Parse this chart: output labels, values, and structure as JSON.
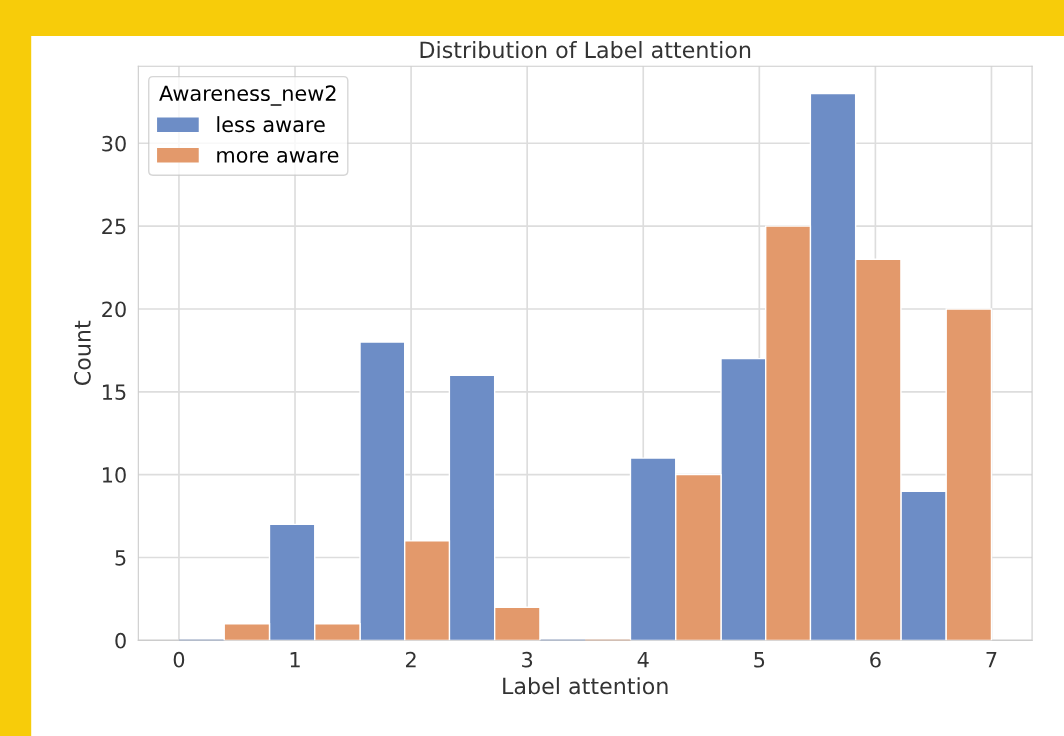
{
  "chart_data": {
    "type": "histogram",
    "title": "Distribution of Label attention",
    "xlabel": "Label attention",
    "ylabel": "Count",
    "legend_title": "Awareness_new2",
    "bins": [
      0,
      0.78,
      1.56,
      2.33,
      3.11,
      3.89,
      4.67,
      5.44,
      6.22,
      7
    ],
    "series": [
      {
        "name": "less aware",
        "color": "#6d8dc6",
        "values": [
          0,
          7,
          18,
          16,
          0,
          11,
          17,
          33,
          9
        ]
      },
      {
        "name": "more aware",
        "color": "#e3996b",
        "values": [
          1,
          1,
          6,
          2,
          0,
          10,
          25,
          23,
          20
        ]
      }
    ],
    "xlim": [
      -0.35,
      7.35
    ],
    "xticks": [
      0,
      1,
      2,
      3,
      4,
      5,
      6,
      7
    ],
    "ylim": [
      0,
      34.65
    ],
    "yticks": [
      0,
      5,
      10,
      15,
      20,
      25,
      30
    ],
    "grid": true,
    "legend": "top left"
  }
}
